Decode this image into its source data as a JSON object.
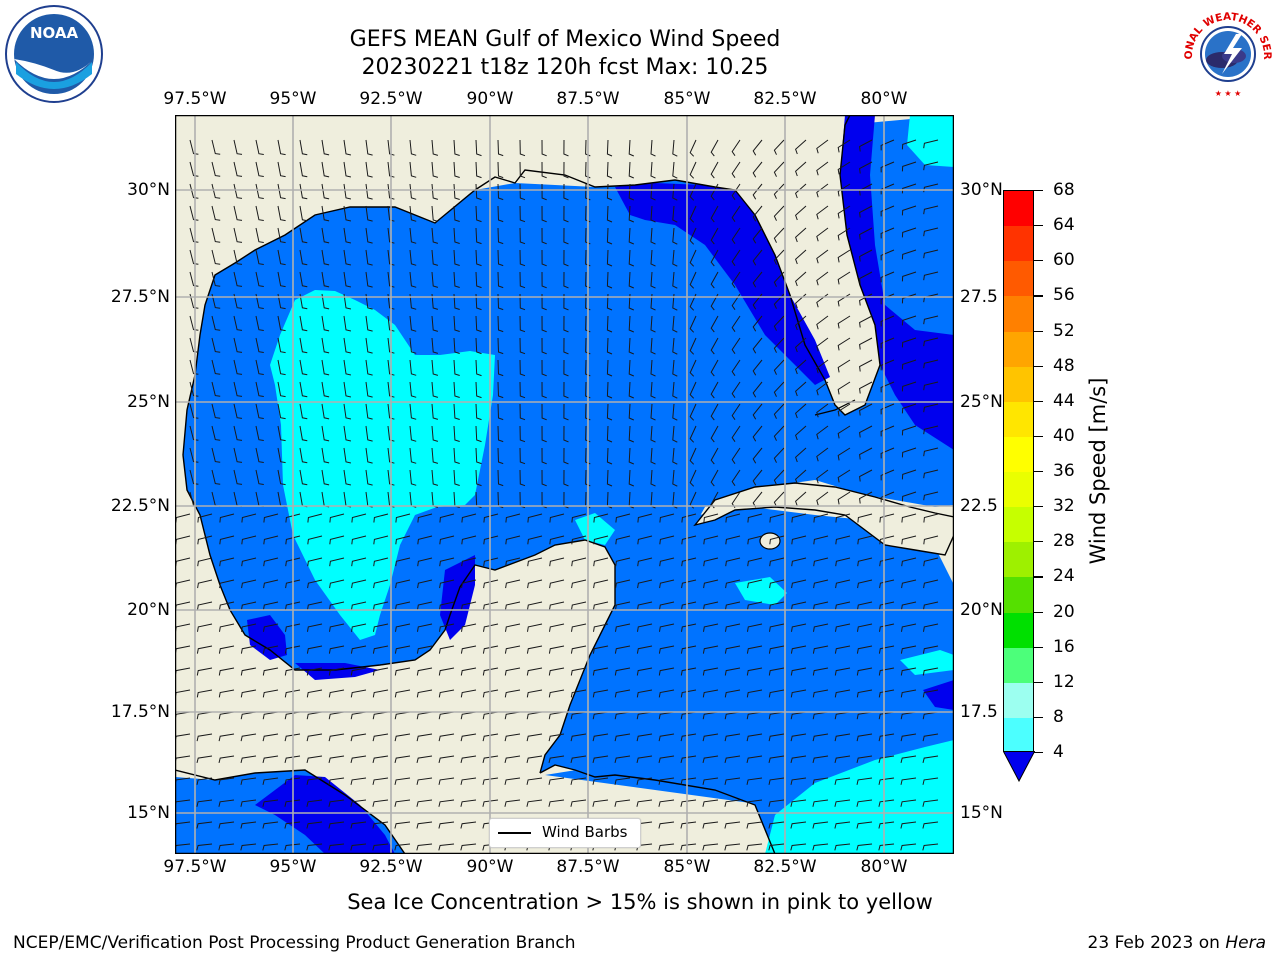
{
  "title": {
    "line1": "GEFS MEAN Gulf of Mexico Wind Speed",
    "line2": "20230221 t18z 120h fcst   Max: 10.25"
  },
  "axes": {
    "lon_ticks": [
      "97.5°W",
      "95°W",
      "92.5°W",
      "90°W",
      "87.5°W",
      "85°W",
      "82.5°W",
      "80°W"
    ],
    "lat_ticks_left": [
      "30°N",
      "27.5°N",
      "25°N",
      "22.5°N",
      "20°N",
      "17.5°N",
      "15°N"
    ],
    "lat_ticks_right": [
      "30°N",
      "27.5",
      "25°N",
      "22.5",
      "20°N",
      "17.5",
      "15°N"
    ]
  },
  "legend": {
    "label": "Wind Barbs"
  },
  "colorbar": {
    "label": "Wind Speed [m/s]",
    "ticks": [
      "68",
      "64",
      "60",
      "56",
      "52",
      "48",
      "44",
      "40",
      "36",
      "32",
      "28",
      "24",
      "20",
      "16",
      "12",
      "8",
      "4"
    ],
    "colors": [
      "#ff0000",
      "#ff3300",
      "#ff5a00",
      "#ff8000",
      "#ffa500",
      "#ffc400",
      "#ffe600",
      "#ffff00",
      "#eaff00",
      "#c6ff00",
      "#9ef000",
      "#55e000",
      "#00e000",
      "#4cff7a",
      "#9cfff0",
      "#4cffff",
      "#00ffff",
      "#0073ff"
    ],
    "extend_color": "#0000ee"
  },
  "ice_note": "Sea Ice Concentration > 15% is shown in pink to yellow",
  "footer": {
    "left": "NCEP/EMC/Verification Post Processing Product Generation Branch",
    "right_date": "23 Feb 2023 on ",
    "right_machine": "Hera"
  },
  "logos": {
    "left": "NOAA",
    "right": "NATIONAL WEATHER SERVICE"
  },
  "map_colors": {
    "land": "#efeedd",
    "ocean_base": "#0073ff",
    "ocean_low": "#0000ee",
    "ocean_mid": "#00ffff",
    "grid": "#b0b0b0"
  }
}
